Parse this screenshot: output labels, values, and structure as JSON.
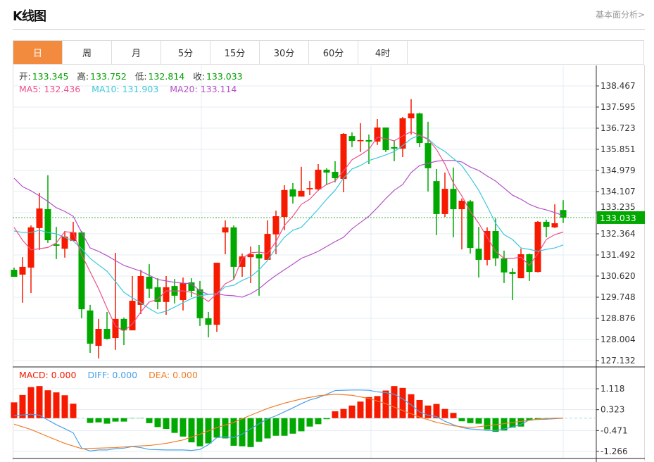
{
  "header": {
    "title": "K线图",
    "fundamental_link": "基本面分析>"
  },
  "tabs": [
    {
      "label": "日",
      "active": true
    },
    {
      "label": "周"
    },
    {
      "label": "月"
    },
    {
      "label": "5分"
    },
    {
      "label": "15分"
    },
    {
      "label": "30分"
    },
    {
      "label": "60分"
    },
    {
      "label": "4时"
    }
  ],
  "ohlc_legend": {
    "open_label": "开:",
    "open": "133.345",
    "high_label": "高:",
    "high": "133.752",
    "low_label": "低:",
    "low": "132.814",
    "close_label": "收:",
    "close": "133.033"
  },
  "ma_legend": {
    "ma5": "MA5: 132.436",
    "ma10": "MA10: 131.903",
    "ma20": "MA20: 133.114"
  },
  "macd_legend": {
    "macd": "MACD: 0.000",
    "diff": "DIFF: 0.000",
    "dea": "DEA: 0.000"
  },
  "current_price": "133.033",
  "colors": {
    "up": "#f51a00",
    "down": "#00a800",
    "ma5": "#f0508c",
    "ma10": "#3cc8dc",
    "ma20": "#b450c8",
    "diff": "#4aa0e8",
    "dea": "#f07d28",
    "accent": "#f28b3d"
  },
  "chart_data": [
    {
      "type": "candlestick",
      "ylim": [
        127.132,
        138.467
      ],
      "yticks": [
        "138.467",
        "137.595",
        "136.723",
        "135.851",
        "134.979",
        "134.107",
        "133.235",
        "132.364",
        "131.492",
        "130.620",
        "129.748",
        "128.876",
        "128.004",
        "127.132"
      ],
      "ohlc": [
        [
          130.88,
          130.97,
          130.59,
          130.59
        ],
        [
          130.68,
          131.4,
          129.52,
          131.0
        ],
        [
          130.97,
          132.71,
          129.92,
          132.63
        ],
        [
          132.6,
          134.05,
          131.7,
          133.41
        ],
        [
          133.38,
          134.78,
          131.99,
          132.1
        ],
        [
          131.93,
          132.65,
          131.32,
          131.87
        ],
        [
          131.75,
          132.48,
          131.38,
          132.25
        ],
        [
          132.07,
          132.86,
          132.07,
          132.42
        ],
        [
          132.42,
          132.48,
          128.88,
          129.25
        ],
        [
          129.2,
          129.43,
          127.45,
          127.83
        ],
        [
          127.74,
          128.85,
          127.22,
          128.44
        ],
        [
          128.44,
          129.14,
          128.0,
          128.03
        ],
        [
          128.06,
          131.58,
          127.57,
          128.85
        ],
        [
          128.85,
          128.91,
          127.77,
          128.38
        ],
        [
          128.38,
          130.62,
          128.38,
          129.6
        ],
        [
          129.43,
          130.88,
          129.05,
          130.62
        ],
        [
          130.59,
          131.11,
          129.72,
          130.1
        ],
        [
          130.16,
          130.53,
          129.25,
          129.55
        ],
        [
          129.55,
          130.62,
          129.02,
          130.16
        ],
        [
          130.21,
          130.5,
          129.49,
          129.81
        ],
        [
          129.63,
          130.56,
          129.2,
          130.33
        ],
        [
          130.36,
          130.53,
          129.75,
          130.01
        ],
        [
          130.07,
          130.42,
          128.56,
          128.88
        ],
        [
          128.88,
          129.14,
          128.09,
          128.61
        ],
        [
          128.61,
          131.17,
          128.32,
          131.17
        ],
        [
          132.42,
          132.92,
          131.52,
          132.63
        ],
        [
          132.63,
          132.71,
          130.48,
          131.0
        ],
        [
          131.0,
          131.55,
          130.59,
          131.43
        ],
        [
          131.4,
          131.84,
          130.33,
          131.52
        ],
        [
          131.52,
          131.9,
          129.81,
          131.35
        ],
        [
          131.29,
          132.92,
          131.29,
          132.36
        ],
        [
          132.34,
          133.32,
          131.52,
          133.09
        ],
        [
          133.06,
          134.37,
          132.51,
          134.17
        ],
        [
          134.2,
          134.46,
          133.61,
          133.9
        ],
        [
          133.9,
          135.13,
          133.9,
          134.14
        ],
        [
          134.2,
          134.54,
          133.96,
          134.25
        ],
        [
          134.2,
          135.24,
          134.14,
          135.01
        ],
        [
          135.01,
          135.07,
          134.37,
          134.89
        ],
        [
          134.92,
          135.36,
          134.49,
          134.66
        ],
        [
          134.63,
          136.52,
          134.08,
          136.49
        ],
        [
          136.4,
          136.55,
          135.94,
          136.2
        ],
        [
          136.2,
          136.93,
          135.74,
          136.23
        ],
        [
          136.23,
          136.46,
          135.24,
          136.17
        ],
        [
          136.17,
          137.1,
          136.03,
          136.75
        ],
        [
          136.75,
          136.75,
          135.74,
          135.82
        ],
        [
          135.94,
          136.2,
          135.36,
          135.88
        ],
        [
          135.88,
          137.19,
          135.53,
          137.13
        ],
        [
          137.13,
          137.92,
          136.46,
          137.33
        ],
        [
          137.33,
          137.36,
          135.94,
          136.11
        ],
        [
          136.11,
          136.99,
          134.11,
          135.07
        ],
        [
          134.54,
          135.04,
          132.31,
          133.18
        ],
        [
          133.18,
          134.89,
          133.06,
          134.22
        ],
        [
          134.22,
          135.1,
          132.22,
          133.38
        ],
        [
          133.38,
          133.82,
          131.72,
          133.73
        ],
        [
          133.7,
          133.76,
          131.55,
          131.78
        ],
        [
          131.75,
          132.65,
          130.56,
          131.29
        ],
        [
          131.29,
          132.63,
          131.06,
          132.48
        ],
        [
          132.48,
          133.0,
          131.03,
          131.35
        ],
        [
          131.35,
          131.67,
          130.33,
          130.77
        ],
        [
          130.79,
          130.94,
          129.63,
          130.71
        ],
        [
          130.53,
          131.75,
          130.53,
          131.52
        ],
        [
          131.52,
          131.55,
          130.42,
          130.79
        ],
        [
          130.79,
          132.89,
          130.77,
          132.86
        ],
        [
          132.86,
          132.95,
          132.22,
          132.65
        ],
        [
          132.63,
          133.58,
          132.6,
          132.8
        ],
        [
          133.345,
          133.752,
          132.814,
          133.033
        ]
      ],
      "ma5": [
        132.63,
        132.1,
        131.7,
        131.75,
        131.8,
        131.99,
        132.45,
        132.42,
        131.49,
        130.8,
        130.1,
        129.3,
        128.56,
        128.35,
        128.64,
        129.14,
        129.55,
        129.66,
        130.01,
        130.0,
        130.01,
        129.95,
        129.81,
        129.57,
        129.89,
        130.3,
        130.48,
        131.35,
        131.58,
        131.61,
        131.55,
        132.04,
        132.71,
        133.09,
        133.58,
        133.79,
        134.16,
        134.4,
        134.54,
        134.95,
        135.42,
        135.62,
        135.85,
        136.35,
        136.29,
        136.2,
        136.4,
        136.58,
        136.43,
        136.26,
        135.85,
        135.24,
        134.46,
        133.93,
        133.29,
        132.8,
        132.22,
        131.64,
        131.35,
        131.35,
        131.4,
        131.06,
        131.55,
        132.13,
        132.33,
        132.436
      ],
      "ma10": [
        132.48,
        132.42,
        132.42,
        132.51,
        132.42,
        132.36,
        132.22,
        132.07,
        131.75,
        131.35,
        131.08,
        130.82,
        130.39,
        129.95,
        129.72,
        129.52,
        129.28,
        129.08,
        129.17,
        129.34,
        129.52,
        129.69,
        129.81,
        129.86,
        129.89,
        130.18,
        130.24,
        130.44,
        130.59,
        130.88,
        131.26,
        131.78,
        132.22,
        132.51,
        132.63,
        133.0,
        133.38,
        133.79,
        134.16,
        134.66,
        135.04,
        135.18,
        135.39,
        135.5,
        135.62,
        135.76,
        136.0,
        136.29,
        136.43,
        136.29,
        135.97,
        135.76,
        135.47,
        135.18,
        134.69,
        134.16,
        133.5,
        132.8,
        132.33,
        132.13,
        131.78,
        131.72,
        131.64,
        131.72,
        131.78,
        131.903
      ],
      "ma20": [
        134.66,
        134.31,
        134.14,
        133.93,
        133.7,
        133.44,
        133.29,
        133.09,
        132.42,
        131.78,
        131.64,
        131.46,
        131.26,
        131.06,
        130.94,
        130.82,
        130.65,
        130.48,
        130.42,
        130.36,
        130.33,
        130.3,
        130.01,
        129.86,
        129.89,
        129.83,
        129.81,
        129.75,
        129.89,
        130.1,
        130.39,
        130.65,
        130.88,
        131.11,
        131.35,
        131.49,
        131.64,
        131.84,
        132.04,
        132.22,
        132.57,
        132.83,
        133.09,
        133.44,
        133.82,
        134.16,
        134.4,
        134.89,
        135.18,
        135.27,
        135.36,
        135.39,
        135.39,
        135.33,
        135.12,
        134.98,
        134.75,
        134.54,
        134.25,
        133.96,
        133.79,
        133.58,
        133.44,
        133.35,
        133.24,
        133.114
      ]
    },
    {
      "type": "macd",
      "ylim": [
        -1.266,
        1.118
      ],
      "yticks": [
        "1.118",
        "0.323",
        "-0.471",
        "-1.266"
      ],
      "histogram": [
        0.6,
        0.88,
        1.18,
        1.22,
        1.06,
        0.98,
        0.87,
        0.55,
        0.0,
        -0.18,
        -0.16,
        -0.21,
        -0.13,
        -0.13,
        -0.01,
        -0.01,
        -0.19,
        -0.34,
        -0.41,
        -0.56,
        -0.7,
        -0.92,
        -1.07,
        -0.96,
        -0.74,
        -0.77,
        -1.05,
        -1.07,
        -1.1,
        -0.9,
        -0.77,
        -0.67,
        -0.67,
        -0.59,
        -0.5,
        -0.32,
        -0.23,
        -0.04,
        0.26,
        0.35,
        0.48,
        0.63,
        0.8,
        0.84,
        1.05,
        1.22,
        1.15,
        0.91,
        0.69,
        0.48,
        0.54,
        0.35,
        0.2,
        -0.12,
        -0.19,
        -0.21,
        -0.43,
        -0.52,
        -0.47,
        -0.36,
        -0.32,
        -0.09,
        -0.05,
        -0.04,
        -0.02,
        0.0
      ],
      "diff": [
        0.09,
        0.12,
        0.15,
        0.11,
        -0.07,
        -0.25,
        -0.4,
        -0.56,
        -1.14,
        -1.25,
        -1.21,
        -1.21,
        -1.16,
        -1.14,
        -1.08,
        -1.12,
        -1.19,
        -1.2,
        -1.21,
        -1.21,
        -1.21,
        -1.23,
        -1.19,
        -1.01,
        -0.74,
        -0.71,
        -0.74,
        -0.61,
        -0.41,
        -0.21,
        -0.03,
        0.09,
        0.24,
        0.39,
        0.55,
        0.69,
        0.78,
        0.91,
        1.05,
        1.06,
        1.07,
        1.07,
        1.06,
        1.0,
        0.97,
        0.91,
        0.73,
        0.51,
        0.24,
        0.11,
        0.06,
        -0.12,
        -0.25,
        -0.36,
        -0.41,
        -0.43,
        -0.47,
        -0.47,
        -0.41,
        -0.34,
        -0.23,
        -0.07,
        -0.05,
        -0.04,
        -0.02,
        0.0
      ],
      "dea": [
        [
          0,
          -0.23
        ],
        [
          2,
          -0.43
        ],
        [
          4,
          -0.7
        ],
        [
          6,
          -0.96
        ],
        [
          8,
          -1.16
        ],
        [
          10,
          -1.14
        ],
        [
          12,
          -1.12
        ],
        [
          14,
          -1.07
        ],
        [
          16,
          -1.04
        ],
        [
          18,
          -0.96
        ],
        [
          20,
          -0.83
        ],
        [
          22,
          -0.61
        ],
        [
          24,
          -0.36
        ],
        [
          26,
          -0.16
        ],
        [
          28,
          0.11
        ],
        [
          30,
          0.37
        ],
        [
          32,
          0.57
        ],
        [
          34,
          0.73
        ],
        [
          36,
          0.85
        ],
        [
          38,
          0.91
        ],
        [
          40,
          0.87
        ],
        [
          42,
          0.75
        ],
        [
          44,
          0.55
        ],
        [
          46,
          0.29
        ],
        [
          48,
          0.04
        ],
        [
          50,
          -0.16
        ],
        [
          52,
          -0.29
        ],
        [
          54,
          -0.36
        ],
        [
          56,
          -0.29
        ],
        [
          58,
          -0.21
        ],
        [
          60,
          -0.12
        ],
        [
          62,
          -0.04
        ],
        [
          64,
          0.0
        ],
        [
          65,
          0.0
        ]
      ]
    }
  ]
}
